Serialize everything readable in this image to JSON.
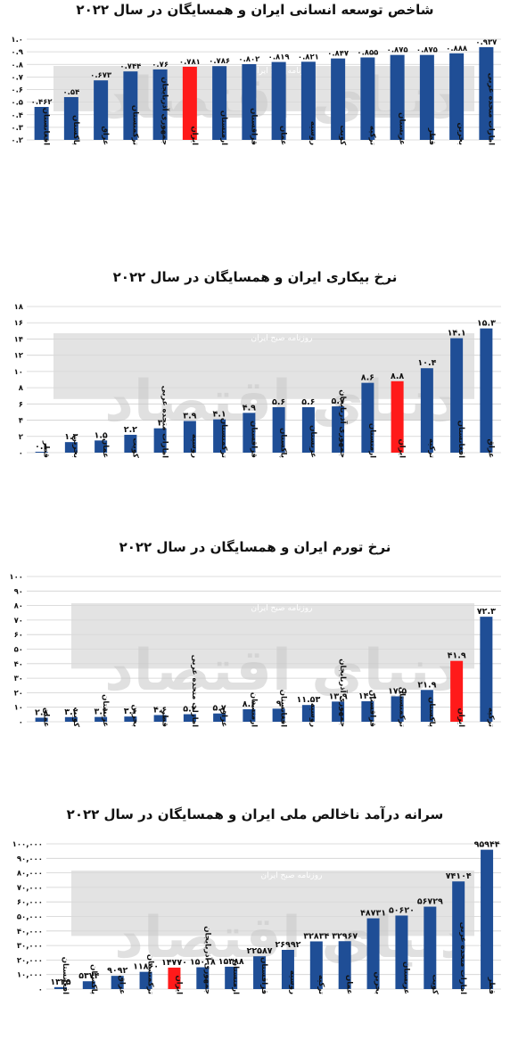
{
  "watermark": {
    "brand": "دنیای اقتصاد",
    "tagline": "روزنامه صبح ایران"
  },
  "colors": {
    "bar": "#1f4e96",
    "highlight": "#ff1a1a",
    "band": "#d9d9d9",
    "grid": "#d0d0d0",
    "text": "#111111"
  },
  "chart_data": [
    {
      "type": "bar",
      "title": "شاخص توسعه انسانی ایران و همسایگان در سال ۲۰۲۲",
      "highlight_category": "ایران",
      "grid": true,
      "ylim": [
        0.2,
        1.0
      ],
      "yticks": [
        0.2,
        0.3,
        0.4,
        0.5,
        0.6,
        0.7,
        0.8,
        0.9,
        1.0
      ],
      "ytick_labels": [
        "۰.۲",
        "۰.۳",
        "۰.۴",
        "۰.۵",
        "۰.۶",
        "۰.۷",
        "۰.۸",
        "۰.۹",
        "۱.۰"
      ],
      "categories": [
        "افغانستان",
        "پاکستان",
        "عراق",
        "ترکمنستان",
        "جمهوری آذربایجان",
        "ایران",
        "ارمنستان",
        "قزاقستان",
        "عمان",
        "روسیه",
        "کویت",
        "ترکیه",
        "عربستان",
        "قطر",
        "بحرین",
        "امارات متحده عربی"
      ],
      "values": [
        0.462,
        0.54,
        0.673,
        0.744,
        0.76,
        0.781,
        0.786,
        0.802,
        0.819,
        0.821,
        0.847,
        0.855,
        0.875,
        0.875,
        0.888,
        0.937
      ],
      "value_labels": [
        "۰.۴۶۲",
        "۰.۵۴",
        "۰.۶۷۳",
        "۰.۷۴۴",
        "۰.۷۶",
        "۰.۷۸۱",
        "۰.۷۸۶",
        "۰.۸۰۲",
        "۰.۸۱۹",
        "۰.۸۲۱",
        "۰.۸۴۷",
        "۰.۸۵۵",
        "۰.۸۷۵",
        "۰.۸۷۵",
        "۰.۸۸۸",
        "۰.۹۳۷"
      ]
    },
    {
      "type": "bar",
      "title": "نرخ بیکاری ایران و همسایگان در سال ۲۰۲۲",
      "highlight_category": "ایران",
      "grid": true,
      "ylim": [
        0,
        18
      ],
      "yticks": [
        0,
        2,
        4,
        6,
        8,
        10,
        12,
        14,
        16,
        18
      ],
      "ytick_labels": [
        "۰",
        "۲",
        "۴",
        "۶",
        "۸",
        "۱۰",
        "۱۲",
        "۱۴",
        "۱۶",
        "۱۸"
      ],
      "categories": [
        "قطر",
        "بحرین",
        "عمان",
        "کویت",
        "امارات متحده عربی",
        "روسیه",
        "ترکمنستان",
        "قزاقستان",
        "پاکستان",
        "عربستان",
        "جمهوری آذربایجان",
        "ارمنستان",
        "ایران",
        "ترکیه",
        "افغانستان",
        "عراق"
      ],
      "values": [
        0.1,
        1.3,
        1.5,
        2.2,
        3,
        3.9,
        4.1,
        4.9,
        5.6,
        5.6,
        5.7,
        8.6,
        8.8,
        10.4,
        14.1,
        15.3
      ],
      "value_labels": [
        "۰.۱",
        "۱.۳",
        "۱.۵",
        "۲.۲",
        "۳",
        "۳.۹",
        "۴.۱",
        "۴.۹",
        "۵.۶",
        "۵.۶",
        "۵.۷",
        "۸.۶",
        "۸.۸",
        "۱۰.۴",
        "۱۴.۱",
        "۱۵.۳"
      ]
    },
    {
      "type": "bar",
      "title": "نرخ تورم ایران و همسایگان در سال ۲۰۲۲",
      "highlight_category": "ایران",
      "grid": true,
      "ylim": [
        0,
        100
      ],
      "yticks": [
        0,
        10,
        20,
        30,
        40,
        50,
        60,
        70,
        80,
        90,
        100
      ],
      "ytick_labels": [
        "۰",
        "۱۰",
        "۲۰",
        "۳۰",
        "۴۰",
        "۵۰",
        "۶۰",
        "۷۰",
        "۸۰",
        "۹۰",
        "۱۰۰"
      ],
      "categories": [
        "عمان",
        "کویت",
        "عربستان",
        "بحرین",
        "قطر",
        "امارات متحده عربی",
        "عراق",
        "ارمنستان",
        "افغانستان",
        "روسیه",
        "جمهوری آذربایجان",
        "قزاقستان",
        "ترکمنستان",
        "پاکستان",
        "ایران",
        "ترکیه"
      ],
      "values": [
        2.8,
        3.2,
        3.3,
        3.6,
        4.6,
        5.2,
        5.7,
        8.6,
        9,
        11.53,
        13.9,
        14.1,
        17.5,
        21.9,
        41.9,
        72.3
      ],
      "value_labels": [
        "۲.۸",
        "۳.۲",
        "۳.۳",
        "۳.۶",
        "۴.۶",
        "۵.۲",
        "۵.۷",
        "۸.۶",
        "۹",
        "۱۱.۵۳",
        "۱۳.۹",
        "۱۴.۱",
        "۱۷.۵",
        "۲۱.۹",
        "۴۱.۹",
        "۷۲.۳"
      ]
    },
    {
      "type": "bar",
      "title": "سرانه درآمد ناخالص ملی ایران و همسایگان در سال ۲۰۲۲",
      "highlight_category": "ایران",
      "grid": true,
      "ylim": [
        0,
        100000
      ],
      "yticks": [
        0,
        10000,
        20000,
        30000,
        40000,
        50000,
        60000,
        70000,
        80000,
        90000,
        100000
      ],
      "ytick_labels": [
        "۰",
        "۱۰,۰۰۰",
        "۲۰,۰۰۰",
        "۳۰,۰۰۰",
        "۴۰,۰۰۰",
        "۵۰,۰۰۰",
        "۶۰,۰۰۰",
        "۷۰,۰۰۰",
        "۸۰,۰۰۰",
        "۹۰,۰۰۰",
        "۱۰۰,۰۰۰"
      ],
      "categories": [
        "افغانستان",
        "پاکستان",
        "عراق",
        "ترکمنستان",
        "ایران",
        "جمهوری آذربایجان",
        "ارمنستان",
        "قزاقستان",
        "روسیه",
        "ترکیه",
        "عمان",
        "بحرین",
        "عربستان",
        "کویت",
        "امارات متحده عربی",
        "قطر"
      ],
      "values": [
        1335,
        5374,
        9092,
        11860,
        14770,
        15018,
        15388,
        22587,
        26992,
        32834,
        32967,
        48731,
        50620,
        56729,
        74104,
        95944
      ],
      "value_labels": [
        "۱۳۳۵",
        "۵۳۷۴",
        "۹۰۹۲",
        "۱۱۸۶۰",
        "۱۴۷۷۰",
        "۱۵۰۱۸",
        "۱۵۳۸۸",
        "۲۲۵۸۷",
        "۲۶۹۹۲",
        "۳۲۸۳۴",
        "۳۲۹۶۷",
        "۴۸۷۳۱",
        "۵۰۶۲۰",
        "۵۶۷۲۹",
        "۷۴۱۰۴",
        "۹۵۹۴۴"
      ]
    }
  ]
}
